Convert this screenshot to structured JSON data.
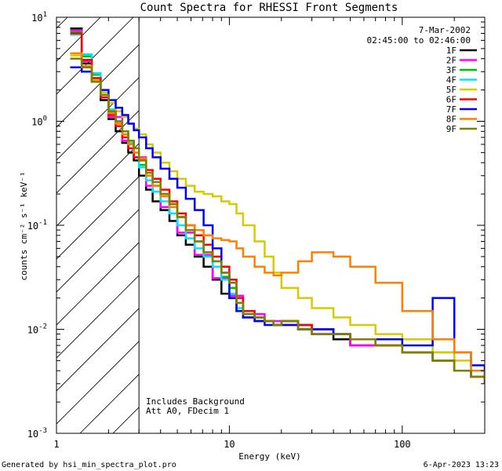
{
  "chart_data": {
    "type": "line",
    "title": "Count Spectra for RHESSI Front Segments",
    "xlabel": "Energy (keV)",
    "ylabel": "counts cm⁻² s⁻¹ keV⁻¹",
    "xscale": "log",
    "yscale": "log",
    "xlim": [
      1,
      300
    ],
    "ylim": [
      0.001,
      10
    ],
    "x_ticks": [
      {
        "value": 1,
        "label": "1"
      },
      {
        "value": 10,
        "label": "10"
      },
      {
        "value": 100,
        "label": "100"
      }
    ],
    "y_ticks": [
      {
        "value": 0.001,
        "base": "10",
        "exp": "-3"
      },
      {
        "value": 0.01,
        "base": "10",
        "exp": "-2"
      },
      {
        "value": 0.1,
        "base": "10",
        "exp": "-1"
      },
      {
        "value": 1,
        "base": "10",
        "exp": "0"
      },
      {
        "value": 10,
        "base": "10",
        "exp": "1"
      }
    ],
    "date": "7-Mar-2002",
    "time_range": "02:45:00 to 02:46:00",
    "attenuator_limit_keV": 3,
    "annotations": [
      "Includes Background",
      "Att A0, FDecim 1"
    ],
    "series": [
      {
        "name": "1F",
        "color": "#000000",
        "x": [
          1.2,
          1.4,
          1.6,
          1.8,
          2.0,
          2.2,
          2.4,
          2.6,
          2.8,
          3.0,
          3.3,
          3.6,
          4.0,
          4.5,
          5.0,
          5.6,
          6.3,
          7.1,
          8.0,
          9.0,
          10,
          11,
          12,
          14,
          16,
          18,
          20,
          25,
          30,
          40,
          50,
          70,
          100,
          150,
          200,
          250,
          300
        ],
        "values": [
          7.8,
          3.6,
          2.5,
          1.6,
          1.05,
          0.8,
          0.62,
          0.5,
          0.42,
          0.3,
          0.22,
          0.17,
          0.14,
          0.11,
          0.08,
          0.065,
          0.05,
          0.04,
          0.03,
          0.022,
          0.02,
          0.015,
          0.013,
          0.012,
          0.012,
          0.011,
          0.012,
          0.01,
          0.009,
          0.008,
          0.007,
          0.007,
          0.006,
          0.005,
          0.004,
          0.0035,
          0.003
        ]
      },
      {
        "name": "2F",
        "color": "#ff00ff",
        "x": [
          1.2,
          1.4,
          1.6,
          1.8,
          2.0,
          2.4,
          2.8,
          3.3,
          4.0,
          5.0,
          6.3,
          8.0,
          10,
          12,
          16,
          20,
          30,
          50,
          100,
          200,
          300
        ],
        "values": [
          7.5,
          3.8,
          2.6,
          1.7,
          1.1,
          0.65,
          0.45,
          0.24,
          0.15,
          0.085,
          0.052,
          0.031,
          0.021,
          0.014,
          0.012,
          0.011,
          0.009,
          0.007,
          0.006,
          0.004,
          0.003
        ]
      },
      {
        "name": "3F",
        "color": "#00c000",
        "x": [
          1.2,
          1.4,
          1.6,
          1.8,
          2.0,
          2.2,
          2.4,
          2.6,
          2.8,
          3.0,
          3.3,
          3.6,
          4.0,
          4.5,
          5.0,
          5.6,
          6.3,
          7.1,
          8.0,
          9.0,
          10,
          11,
          12,
          14,
          16,
          18,
          20,
          25,
          30,
          40,
          50,
          70,
          100,
          150,
          200,
          250,
          300
        ],
        "values": [
          7.2,
          4.2,
          2.8,
          1.8,
          1.2,
          0.95,
          0.75,
          0.6,
          0.5,
          0.38,
          0.3,
          0.24,
          0.2,
          0.16,
          0.12,
          0.09,
          0.07,
          0.055,
          0.045,
          0.032,
          0.025,
          0.018,
          0.014,
          0.013,
          0.012,
          0.011,
          0.012,
          0.011,
          0.01,
          0.009,
          0.008,
          0.007,
          0.006,
          0.005,
          0.004,
          0.0035,
          0.003
        ]
      },
      {
        "name": "4F",
        "color": "#00e5ff",
        "x": [
          1.2,
          1.4,
          1.6,
          1.8,
          2.0,
          2.2,
          2.4,
          2.6,
          2.8,
          3.0,
          3.3,
          3.6,
          4.0,
          4.5,
          5.0,
          5.6,
          6.3,
          7.1,
          8.0,
          9.0,
          10,
          11,
          12,
          14,
          16,
          18,
          20,
          25,
          30,
          40,
          50,
          70,
          100,
          150,
          200,
          250,
          300
        ],
        "values": [
          6.8,
          4.4,
          2.9,
          1.9,
          1.3,
          1.0,
          0.8,
          0.62,
          0.5,
          0.36,
          0.27,
          0.21,
          0.17,
          0.13,
          0.1,
          0.075,
          0.06,
          0.05,
          0.04,
          0.03,
          0.022,
          0.016,
          0.014,
          0.013,
          0.012,
          0.011,
          0.012,
          0.01,
          0.01,
          0.009,
          0.008,
          0.007,
          0.006,
          0.005,
          0.004,
          0.0035,
          0.003
        ]
      },
      {
        "name": "5F",
        "color": "#d4cc00",
        "x": [
          1.2,
          1.4,
          1.6,
          1.8,
          2.0,
          2.2,
          2.4,
          2.6,
          2.8,
          3.0,
          3.3,
          3.6,
          4.0,
          4.5,
          5.0,
          5.6,
          6.3,
          7.1,
          8.0,
          9.0,
          10,
          11,
          12,
          14,
          16,
          18,
          20,
          25,
          30,
          40,
          50,
          70,
          100,
          150,
          200,
          250,
          300
        ],
        "values": [
          4.3,
          3.4,
          2.5,
          1.9,
          1.5,
          1.25,
          1.1,
          0.95,
          0.85,
          0.75,
          0.6,
          0.5,
          0.4,
          0.33,
          0.28,
          0.24,
          0.21,
          0.2,
          0.19,
          0.17,
          0.16,
          0.13,
          0.1,
          0.07,
          0.05,
          0.035,
          0.025,
          0.02,
          0.016,
          0.013,
          0.011,
          0.009,
          0.008,
          0.006,
          0.005,
          0.004,
          0.003
        ]
      },
      {
        "name": "6F",
        "color": "#ff0000",
        "x": [
          1.2,
          1.4,
          1.6,
          1.8,
          2.0,
          2.2,
          2.4,
          2.6,
          2.8,
          3.0,
          3.3,
          3.6,
          4.0,
          4.5,
          5.0,
          5.6,
          6.3,
          7.1,
          8.0,
          9.0,
          10,
          11,
          12,
          14,
          16,
          18,
          20,
          25,
          30,
          40,
          50,
          70,
          100,
          150,
          200,
          250,
          300
        ],
        "values": [
          7.0,
          3.9,
          2.6,
          1.7,
          1.15,
          0.9,
          0.7,
          0.55,
          0.45,
          0.42,
          0.34,
          0.28,
          0.22,
          0.17,
          0.13,
          0.1,
          0.08,
          0.065,
          0.05,
          0.04,
          0.03,
          0.02,
          0.015,
          0.013,
          0.012,
          0.011,
          0.012,
          0.011,
          0.01,
          0.009,
          0.008,
          0.007,
          0.006,
          0.005,
          0.004,
          0.0035,
          0.0035
        ]
      },
      {
        "name": "7F",
        "color": "#0000ff",
        "x": [
          1.2,
          1.4,
          1.6,
          1.8,
          2.0,
          2.2,
          2.4,
          2.6,
          2.8,
          3.0,
          3.3,
          3.6,
          4.0,
          4.5,
          5.0,
          5.6,
          6.3,
          7.1,
          8.0,
          9.0,
          10,
          11,
          12,
          14,
          16,
          18,
          20,
          25,
          30,
          40,
          50,
          70,
          100,
          150,
          200,
          250,
          300
        ],
        "values": [
          3.3,
          3.0,
          2.4,
          2.0,
          1.6,
          1.35,
          1.15,
          0.95,
          0.82,
          0.7,
          0.55,
          0.45,
          0.35,
          0.28,
          0.23,
          0.18,
          0.14,
          0.1,
          0.06,
          0.035,
          0.02,
          0.015,
          0.013,
          0.012,
          0.011,
          0.011,
          0.011,
          0.01,
          0.01,
          0.009,
          0.008,
          0.008,
          0.007,
          0.02,
          0.006,
          0.0045,
          0.0035
        ]
      },
      {
        "name": "8F",
        "color": "#ff8000",
        "x": [
          1.2,
          1.4,
          1.6,
          1.8,
          2.0,
          2.2,
          2.4,
          2.6,
          2.8,
          3.0,
          3.3,
          3.6,
          4.0,
          4.5,
          5.0,
          5.6,
          6.3,
          7.1,
          8.0,
          9.0,
          10,
          11,
          12,
          14,
          16,
          18,
          20,
          25,
          30,
          40,
          50,
          70,
          100,
          150,
          200,
          250,
          300
        ],
        "values": [
          4.5,
          3.4,
          2.4,
          1.8,
          1.2,
          0.95,
          0.75,
          0.6,
          0.5,
          0.44,
          0.3,
          0.24,
          0.19,
          0.15,
          0.12,
          0.1,
          0.09,
          0.08,
          0.075,
          0.072,
          0.07,
          0.06,
          0.05,
          0.04,
          0.035,
          0.033,
          0.035,
          0.045,
          0.055,
          0.05,
          0.04,
          0.028,
          0.015,
          0.008,
          0.006,
          0.004,
          0.003
        ]
      },
      {
        "name": "9F",
        "color": "#808000",
        "x": [
          1.2,
          1.4,
          1.6,
          1.8,
          2.0,
          2.2,
          2.4,
          2.6,
          2.8,
          3.0,
          3.3,
          3.6,
          4.0,
          4.5,
          5.0,
          5.6,
          6.3,
          7.1,
          8.0,
          9.0,
          10,
          11,
          12,
          14,
          16,
          18,
          20,
          25,
          30,
          40,
          50,
          70,
          100,
          150,
          200,
          250,
          300
        ],
        "values": [
          4.0,
          3.3,
          2.4,
          1.8,
          1.25,
          1.0,
          0.8,
          0.65,
          0.55,
          0.42,
          0.32,
          0.26,
          0.2,
          0.16,
          0.12,
          0.09,
          0.07,
          0.055,
          0.045,
          0.035,
          0.028,
          0.018,
          0.014,
          0.013,
          0.012,
          0.011,
          0.012,
          0.01,
          0.009,
          0.009,
          0.008,
          0.007,
          0.006,
          0.005,
          0.004,
          0.0035,
          0.003
        ]
      }
    ]
  },
  "footer": {
    "generated_by": "Generated by hsi_min_spectra_plot.pro",
    "timestamp": "6-Apr-2023 13:23"
  }
}
